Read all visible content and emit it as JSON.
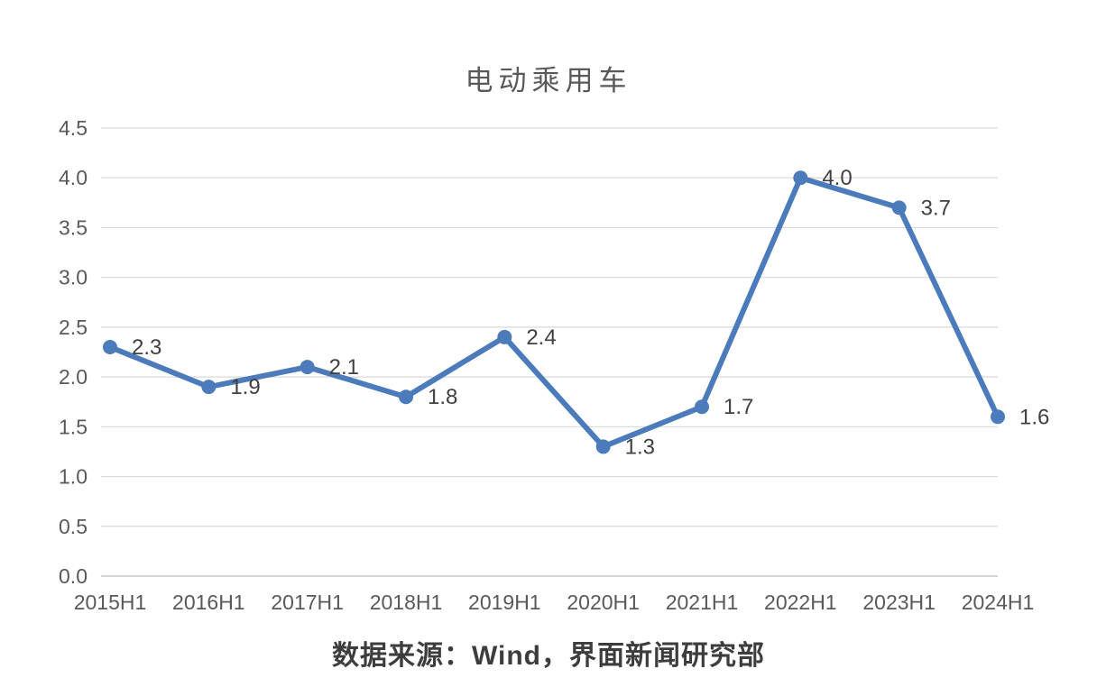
{
  "chart": {
    "source_note": "数据来源：Wind，界面新闻研究部"
  },
  "chart_data": {
    "type": "line",
    "title": "电动乘用车",
    "categories": [
      "2015H1",
      "2016H1",
      "2017H1",
      "2018H1",
      "2019H1",
      "2020H1",
      "2021H1",
      "2022H1",
      "2023H1",
      "2024H1"
    ],
    "values": [
      2.3,
      1.9,
      2.1,
      1.8,
      2.4,
      1.3,
      1.7,
      4.0,
      3.7,
      1.6
    ],
    "data_labels": [
      "2.3",
      "1.9",
      "2.1",
      "1.8",
      "2.4",
      "1.3",
      "1.7",
      "4.0",
      "3.7",
      "1.6"
    ],
    "xlabel": "",
    "ylabel": "",
    "ylim": [
      0.0,
      4.5
    ],
    "ytick_step": 0.5,
    "ytick_labels": [
      "0.0",
      "0.5",
      "1.0",
      "1.5",
      "2.0",
      "2.5",
      "3.0",
      "3.5",
      "4.0",
      "4.5"
    ],
    "grid": true,
    "legend_position": "none",
    "marker": "circle",
    "colors": {
      "line": "#4b7bba",
      "marker": "#4b7bba",
      "gridline": "#d9d9d9",
      "axis_line": "#c6c6c6",
      "data_label": "#404040",
      "tick_label": "#595959",
      "title": "#595959",
      "source": "#3d3d3d"
    }
  }
}
